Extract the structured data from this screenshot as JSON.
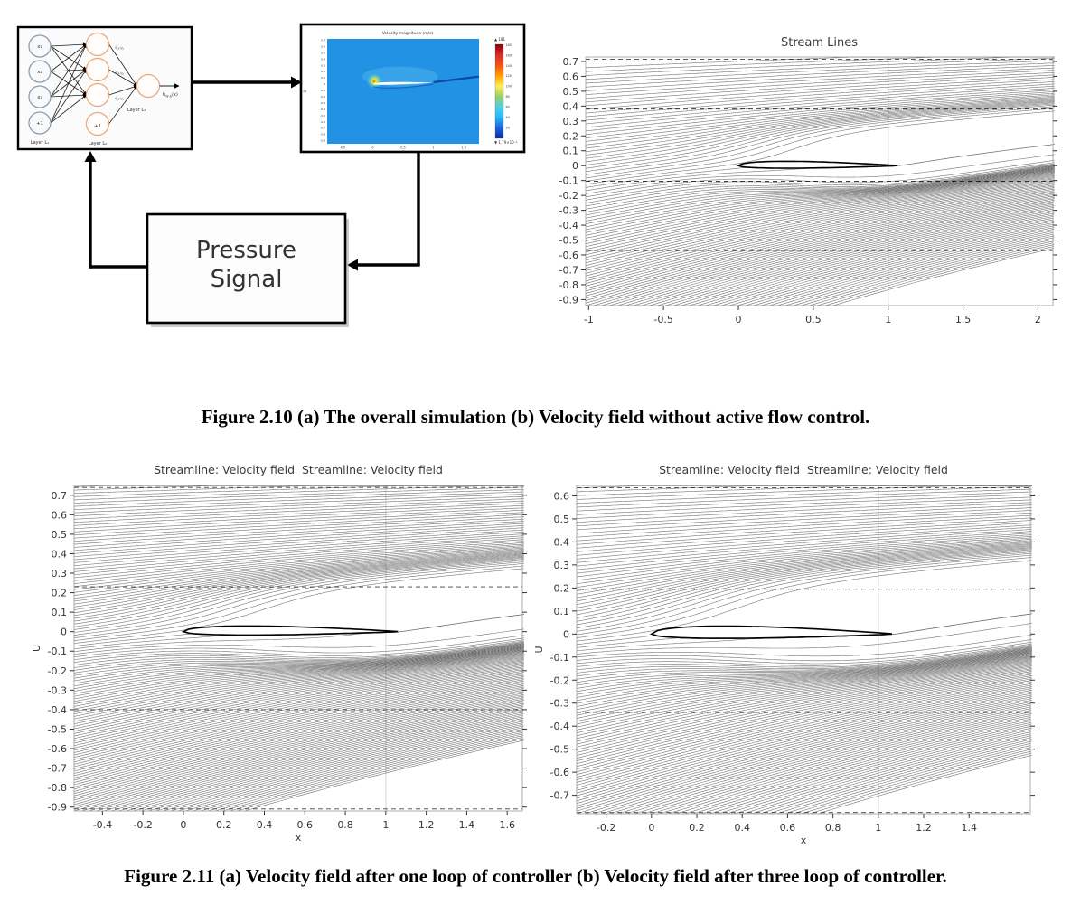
{
  "figure_2_10": {
    "caption": "Figure 2.10 (a) The overall simulation (b) Velocity field without active flow control.",
    "diagram": {
      "nn": {
        "inputs": [
          "x₁",
          "x₂",
          "x₃",
          "+1"
        ],
        "input_layer_label": "Layer L₁",
        "hidden_edge_labels": [
          "a₁⁽²⁾",
          "a₂⁽²⁾",
          "a₃⁽²⁾"
        ],
        "hidden_bias": "+1",
        "hidden_layer_label": "Layer L₂",
        "output_layer_label": "Layer L₃",
        "output_label": {
          "pre": "h",
          "sub": "W,b",
          "post": "(x)"
        },
        "node_colors": {
          "input": "#8e9db0",
          "hidden": "#e9a97c",
          "output": "#e9a97c"
        }
      },
      "pressure_box": {
        "lines": [
          "Pressure",
          "Signal"
        ]
      }
    }
  },
  "figure_2_11": {
    "caption": "Figure 2.11 (a) Velocity field after one loop of controller (b) Velocity field after three loop of controller."
  },
  "chart_data": [
    {
      "id": "velocity-field",
      "type": "heatmap",
      "title": "Velocity magnitude (m/s)",
      "xlabel": "x",
      "ylabel": "U",
      "xlim": [
        -0.75,
        1.75
      ],
      "ylim": [
        -0.95,
        0.72
      ],
      "x_ticks": [
        -0.5,
        0,
        0.5,
        1,
        1.5
      ],
      "y_ticks": [
        0.7,
        0.6,
        0.5,
        0.4,
        0.3,
        0.2,
        0.1,
        0,
        -0.1,
        -0.2,
        -0.3,
        -0.4,
        -0.5,
        -0.6,
        -0.7,
        -0.8,
        -0.9
      ],
      "field_color": "#2293e4",
      "airfoil": {
        "x0": 0,
        "chord": 1.0,
        "y": 0
      },
      "colorbar": {
        "max_marker": "▲",
        "max": "181",
        "ticks": [
          180,
          160,
          140,
          120,
          100,
          80,
          60,
          40,
          20
        ],
        "min_marker": "▼",
        "min": "1.79×10⁻⁴",
        "colors": [
          "#8b0000",
          "#d32f2f",
          "#f4511e",
          "#ffa000",
          "#ffee58",
          "#9ccc65",
          "#4dd0e1",
          "#29b6f6",
          "#1e63d6",
          "#0d2a9e"
        ]
      }
    },
    {
      "id": "plot-a",
      "type": "line",
      "variant": "streamlines",
      "title": "Stream Lines",
      "xlabel": "",
      "ylabel": "",
      "xlim": [
        -1.02,
        2.1
      ],
      "ylim": [
        -0.94,
        0.73
      ],
      "x_ticks": [
        -1,
        -0.5,
        0,
        0.5,
        1,
        1.5,
        2
      ],
      "y_ticks": [
        0.7,
        0.6,
        0.5,
        0.4,
        0.3,
        0.2,
        0.1,
        0,
        -0.1,
        -0.2,
        -0.3,
        -0.4,
        -0.5,
        -0.6,
        -0.7,
        -0.8,
        -0.9
      ],
      "airfoil": {
        "x0": 0,
        "chord": 1.06,
        "y": 0,
        "t_top": 0.085,
        "t_bot": 0.05
      },
      "flow": {
        "slope_bottom": 0.3,
        "slope_top": 0.035
      },
      "seed_spacing": [
        0.016,
        0.027
      ],
      "bottom_seed_stop_x": 0.65,
      "top_gap": 0.05,
      "dashed_y": [
        0.715,
        0.38,
        -0.105,
        -0.57
      ],
      "vline_x": 1.0,
      "line_color": "#000000"
    },
    {
      "id": "plot-b",
      "type": "line",
      "variant": "streamlines",
      "title": "Streamline: Velocity field  Streamline: Velocity field",
      "xlabel": "x",
      "ylabel": "U",
      "xlim": [
        -0.54,
        1.675
      ],
      "ylim": [
        -0.92,
        0.75
      ],
      "x_ticks": [
        -0.4,
        -0.2,
        0,
        0.2,
        0.4,
        0.6,
        0.8,
        1,
        1.2,
        1.4,
        1.6
      ],
      "y_ticks": [
        0.7,
        0.6,
        0.5,
        0.4,
        0.3,
        0.2,
        0.1,
        0,
        -0.1,
        -0.2,
        -0.3,
        -0.4,
        -0.5,
        -0.6,
        -0.7,
        -0.8,
        -0.9
      ],
      "airfoil": {
        "x0": 0,
        "chord": 1.06,
        "y": 0,
        "t_top": 0.085,
        "t_bot": 0.05
      },
      "flow": {
        "slope_bottom": 0.3,
        "slope_top": 0.03
      },
      "seed_spacing": [
        0.011,
        0.017
      ],
      "bottom_seed_stop_x": 0.32,
      "top_gap": 0.0,
      "dashed_y": [
        0.74,
        0.23,
        -0.4,
        -0.91
      ],
      "vline_x": 1.0,
      "line_color": "#000000"
    },
    {
      "id": "plot-c",
      "type": "line",
      "variant": "streamlines",
      "title": "Streamline: Velocity field  Streamline: Velocity field",
      "xlabel": "x",
      "ylabel": "U",
      "xlim": [
        -0.33,
        1.67
      ],
      "ylim": [
        -0.78,
        0.645
      ],
      "x_ticks": [
        -0.2,
        0,
        0.2,
        0.4,
        0.6,
        0.8,
        1,
        1.2,
        1.4
      ],
      "y_ticks": [
        0.6,
        0.5,
        0.4,
        0.3,
        0.2,
        0.1,
        0,
        -0.1,
        -0.2,
        -0.3,
        -0.4,
        -0.5,
        -0.6,
        -0.7
      ],
      "airfoil": {
        "x0": 0,
        "chord": 1.06,
        "y": 0,
        "t_top": 0.1,
        "t_bot": 0.055
      },
      "flow": {
        "slope_bottom": 0.3,
        "slope_top": 0.03
      },
      "seed_spacing": [
        0.011,
        0.017
      ],
      "bottom_seed_stop_x": 0.75,
      "top_gap": 0.0,
      "dashed_y": [
        0.635,
        0.195,
        -0.34,
        -0.775
      ],
      "vline_x": 1.0,
      "line_color": "#000000"
    }
  ]
}
